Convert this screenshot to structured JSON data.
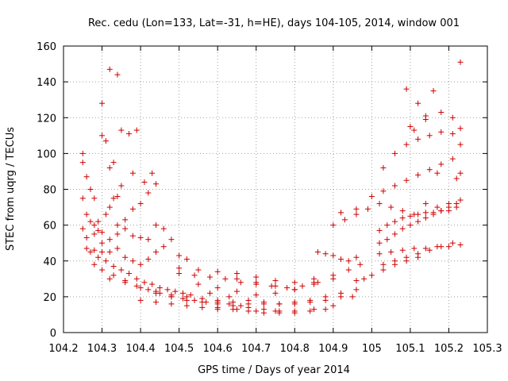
{
  "chart_data": {
    "type": "scatter",
    "title": "Rec. cedu (Lon=133, Lat=-31, h=HE), days 104-105, 2014, window 001",
    "xlabel": "GPS time / Days of year 2014",
    "ylabel": "STEC from uqrg / TECUs",
    "xlim": [
      104.2,
      105.3
    ],
    "ylim": [
      0,
      160
    ],
    "xticks": [
      104.2,
      104.3,
      104.4,
      104.5,
      104.6,
      104.7,
      104.8,
      104.9,
      105,
      105.1,
      105.2,
      105.3
    ],
    "xtick_labels": [
      "104.2",
      "104.3",
      "104.4",
      "104.5",
      "104.6",
      "104.7",
      "104.8",
      "104.9",
      "105",
      "105.1",
      "105.2",
      "105.3"
    ],
    "yticks": [
      0,
      20,
      40,
      60,
      80,
      100,
      120,
      140,
      160
    ],
    "ytick_labels": [
      "0",
      "20",
      "40",
      "60",
      "80",
      "100",
      "120",
      "140",
      "160"
    ],
    "grid": true,
    "marker": "+",
    "color": "#cc0000",
    "series": [
      {
        "name": "STEC",
        "x": [
          104.25,
          104.25,
          104.26,
          104.27,
          104.28,
          104.29,
          104.3,
          104.31,
          104.32,
          104.33,
          104.34,
          104.35,
          104.25,
          104.26,
          104.27,
          104.28,
          104.29,
          104.3,
          104.31,
          104.32,
          104.33,
          104.34,
          104.36,
          104.38,
          104.4,
          104.42,
          104.25,
          104.26,
          104.28,
          104.3,
          104.32,
          104.34,
          104.36,
          104.38,
          104.4,
          104.42,
          104.44,
          104.46,
          104.26,
          104.28,
          104.3,
          104.32,
          104.34,
          104.36,
          104.38,
          104.4,
          104.42,
          104.44,
          104.46,
          104.48,
          104.5,
          104.52,
          104.27,
          104.29,
          104.31,
          104.33,
          104.35,
          104.37,
          104.39,
          104.41,
          104.43,
          104.45,
          104.47,
          104.49,
          104.51,
          104.53,
          104.28,
          104.3,
          104.33,
          104.36,
          104.39,
          104.42,
          104.45,
          104.48,
          104.51,
          104.54,
          104.57,
          104.6,
          104.63,
          104.66,
          104.3,
          104.32,
          104.34,
          104.35,
          104.37,
          104.38,
          104.39,
          104.41,
          104.43,
          104.44,
          104.32,
          104.36,
          104.4,
          104.44,
          104.48,
          104.52,
          104.56,
          104.6,
          104.64,
          104.68,
          104.72,
          104.76,
          104.4,
          104.44,
          104.48,
          104.52,
          104.56,
          104.6,
          104.64,
          104.68,
          104.72,
          104.76,
          104.8,
          104.84,
          104.88,
          104.44,
          104.48,
          104.52,
          104.56,
          104.6,
          104.64,
          104.68,
          104.72,
          104.76,
          104.8,
          104.84,
          104.88,
          104.92,
          104.5,
          104.54,
          104.58,
          104.62,
          104.66,
          104.7,
          104.74,
          104.78,
          104.82,
          104.86,
          104.5,
          104.55,
          104.6,
          104.65,
          104.7,
          104.75,
          104.8,
          104.85,
          104.55,
          104.6,
          104.65,
          104.7,
          104.75,
          104.8,
          104.85,
          104.9,
          104.58,
          104.63,
          104.68,
          104.72,
          104.76,
          104.8,
          104.84,
          104.88,
          104.92,
          104.96,
          104.6,
          104.65,
          104.7,
          104.75,
          104.8,
          104.85,
          104.9,
          104.95,
          104.65,
          104.7,
          104.75,
          104.8,
          104.85,
          104.9,
          104.94,
          104.97,
          104.86,
          104.88,
          104.9,
          104.92,
          104.94,
          104.96,
          104.9,
          104.93,
          104.96,
          104.99,
          105.02,
          105.05,
          105.08,
          105.11,
          105.14,
          105.17,
          105.2,
          105.23,
          104.92,
          104.96,
          105.0,
          105.03,
          105.06,
          105.09,
          105.12,
          105.15,
          105.18,
          105.21,
          105.23,
          105.02,
          105.04,
          105.06,
          105.08,
          105.1,
          105.12,
          105.14,
          105.16,
          105.18,
          105.2,
          105.22,
          105.02,
          105.05,
          105.08,
          105.11,
          105.14,
          105.17,
          105.2,
          105.23,
          105.03,
          105.06,
          105.09,
          105.12,
          105.15,
          105.18,
          105.21,
          105.02,
          105.04,
          105.06,
          105.08,
          105.1,
          105.12,
          105.14,
          105.16,
          105.18,
          105.2,
          105.22,
          105.03,
          105.06,
          105.09,
          105.12,
          105.15,
          105.18,
          105.21,
          105.23,
          105.1,
          105.12,
          105.14,
          105.16,
          105.18,
          105.21,
          105.23,
          105.09,
          105.11,
          105.14,
          105.17,
          105.22,
          105.23,
          104.96,
          104.98,
          105.0,
          105.03,
          105.06,
          105.09,
          105.12
        ],
        "y": [
          100,
          95,
          87,
          80,
          75,
          62,
          110,
          107,
          92,
          95,
          76,
          113,
          75,
          66,
          62,
          60,
          57,
          56,
          66,
          70,
          75,
          60,
          63,
          69,
          72,
          78,
          58,
          53,
          55,
          50,
          52,
          55,
          58,
          54,
          53,
          52,
          60,
          58,
          47,
          46,
          45,
          45,
          47,
          42,
          40,
          38,
          41,
          45,
          48,
          52,
          43,
          41,
          45,
          42,
          40,
          37,
          35,
          33,
          30,
          28,
          27,
          25,
          24,
          23,
          22,
          21,
          38,
          35,
          32,
          29,
          26,
          24,
          22,
          20,
          19,
          18,
          17,
          17,
          16,
          15,
          128,
          147,
          144,
          82,
          111,
          89,
          113,
          84,
          89,
          83,
          30,
          28,
          25,
          22,
          20,
          18,
          17,
          16,
          15,
          14,
          13,
          12,
          18,
          17,
          16,
          15,
          14,
          13,
          13,
          12,
          11,
          11,
          11,
          12,
          13,
          23,
          21,
          20,
          19,
          18,
          17,
          16,
          16,
          16,
          17,
          18,
          20,
          22,
          33,
          32,
          31,
          30,
          28,
          27,
          26,
          25,
          26,
          28,
          36,
          35,
          34,
          33,
          31,
          29,
          28,
          30,
          27,
          25,
          23,
          21,
          22,
          24,
          27,
          30,
          22,
          20,
          18,
          17,
          16,
          16,
          17,
          18,
          20,
          24,
          14,
          13,
          12,
          12,
          12,
          13,
          15,
          20,
          30,
          28,
          26,
          24,
          28,
          32,
          35,
          38,
          45,
          44,
          43,
          41,
          40,
          42,
          60,
          63,
          66,
          69,
          72,
          70,
          68,
          66,
          72,
          70,
          72,
          74,
          67,
          69,
          76,
          79,
          82,
          85,
          88,
          91,
          94,
          97,
          105,
          50,
          52,
          55,
          58,
          60,
          62,
          64,
          66,
          68,
          70,
          72,
          44,
          45,
          46,
          47,
          47,
          48,
          48,
          49,
          38,
          40,
          42,
          44,
          46,
          48,
          50,
          57,
          60,
          62,
          64,
          65,
          66,
          67,
          67,
          68,
          68,
          70,
          92,
          100,
          105,
          108,
          110,
          112,
          111,
          114,
          115,
          128,
          121,
          135,
          123,
          120,
          151,
          136,
          113,
          119,
          89,
          86,
          89,
          29,
          30,
          32,
          35,
          38,
          40,
          42
        ]
      }
    ]
  }
}
